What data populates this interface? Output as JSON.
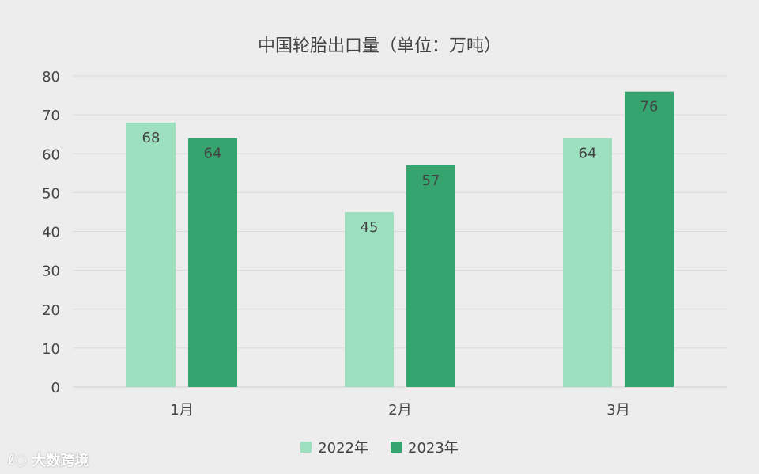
{
  "colors": {
    "background": "#ededed",
    "grid": "#dadada",
    "axis": "#cfcfcf",
    "text": "#444444",
    "series_2022": "#9de0c0",
    "series_2023": "#35a46e"
  },
  "chart_data": {
    "type": "bar",
    "title": "中国轮胎出口量（单位：万吨）",
    "xlabel": "",
    "ylabel": "",
    "categories": [
      "1月",
      "2月",
      "3月"
    ],
    "series": [
      {
        "name": "2022年",
        "values": [
          68,
          45,
          64
        ],
        "color": "#9de0c0"
      },
      {
        "name": "2023年",
        "values": [
          64,
          57,
          76
        ],
        "color": "#35a46e"
      }
    ],
    "ylim": [
      0,
      80
    ],
    "yticks": [
      0,
      10,
      20,
      30,
      40,
      50,
      60,
      70,
      80
    ],
    "grid": true,
    "legend_position": "bottom",
    "data_labels": true
  },
  "legend": {
    "items": [
      {
        "label": "2022年",
        "color": "#9de0c0"
      },
      {
        "label": "2023年",
        "color": "#35a46e"
      }
    ]
  },
  "watermark": {
    "logo": "𝓛",
    "text": "大数跨境"
  }
}
